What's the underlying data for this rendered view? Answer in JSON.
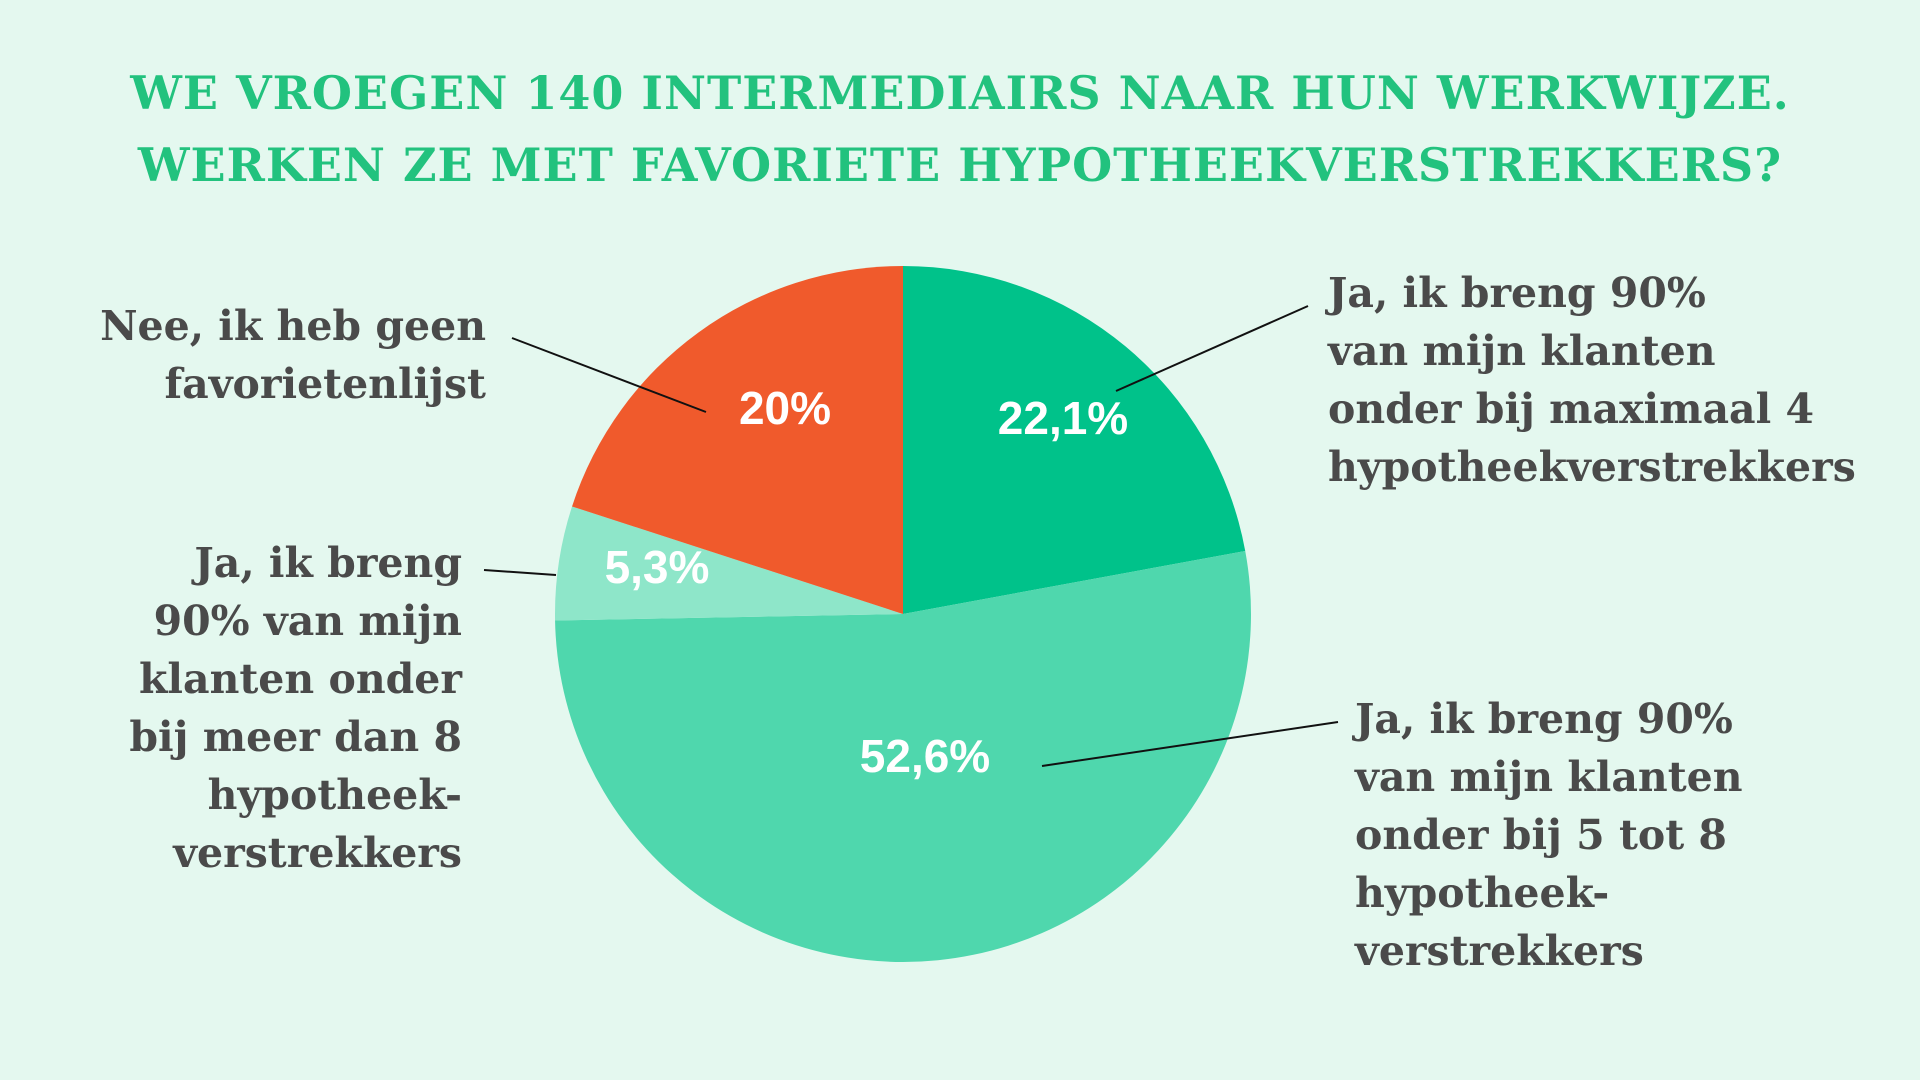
{
  "chart_data": {
    "type": "pie",
    "title_lines": [
      "WE VROEGEN 140 INTERMEDIAIRS NAAR HUN WERKWIJZE.",
      "WERKEN ZE MET FAVORIETE HYPOTHEEKVERSTREKKERS?"
    ],
    "start_angle_deg": 0,
    "direction": "clockwise",
    "slices": [
      {
        "value": 22.1,
        "value_label": "22,1%",
        "label": "Ja, ik breng 90%\nvan mijn klanten\nonder bij maximaal 4\nhypotheekverstrekkers",
        "color": "#00c28a"
      },
      {
        "value": 52.6,
        "value_label": "52,6%",
        "label": "Ja, ik breng 90%\nvan mijn klanten\nonder bij 5 tot 8\nhypotheek-\nverstrekkers",
        "color": "#4fd7ad"
      },
      {
        "value": 5.3,
        "value_label": "5,3%",
        "label": "Ja, ik breng\n90% van mijn\nklanten onder\nbij meer dan 8\nhypotheek-\nverstrekkers",
        "color": "#8ee6c9"
      },
      {
        "value": 20,
        "value_label": "20%",
        "label": "Nee, ik heb geen\nfavorietenlijst",
        "color": "#f05a2c"
      }
    ],
    "colors": {
      "background": "#e4f8ef",
      "title": "#22c27e",
      "label_text": "#4a4a4a",
      "value_text": "#ffffff",
      "leader_line": "#111111"
    }
  }
}
